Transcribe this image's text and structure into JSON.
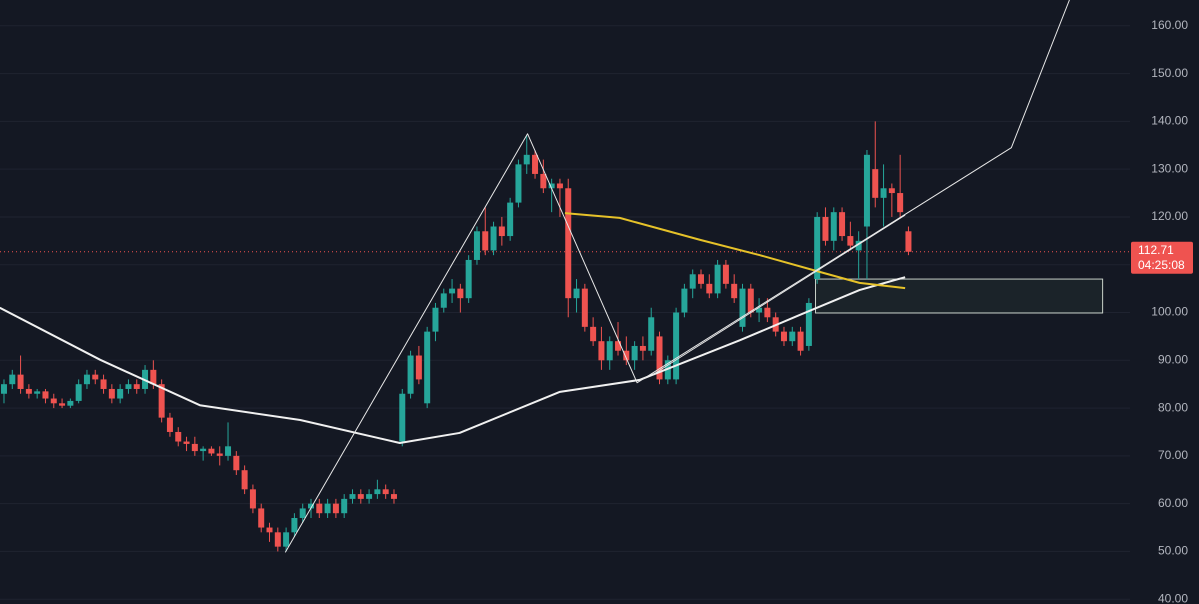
{
  "chart_data": {
    "type": "candlestick",
    "up_color": "#26a69a",
    "down_color": "#ef5350",
    "xlim": [
      -0.48,
      135.7
    ],
    "ylim": [
      39,
      165.4
    ],
    "yticks": [
      {
        "value": 40,
        "label": "40.00"
      },
      {
        "value": 50,
        "label": "50.00"
      },
      {
        "value": 60,
        "label": "60.00"
      },
      {
        "value": 70,
        "label": "70.00"
      },
      {
        "value": 80,
        "label": "80.00"
      },
      {
        "value": 90,
        "label": "90.00"
      },
      {
        "value": 100,
        "label": "100.00"
      },
      {
        "value": 110,
        "label": "110.00"
      },
      {
        "value": 120,
        "label": "120.00"
      },
      {
        "value": 130,
        "label": "130.00"
      },
      {
        "value": 140,
        "label": "140.00"
      },
      {
        "value": 150,
        "label": "150.00"
      },
      {
        "value": 160,
        "label": "160.00"
      }
    ],
    "grid": true,
    "open": [
      83,
      85,
      87,
      84,
      83,
      83.5,
      82,
      81,
      80.5,
      81.5,
      85,
      87,
      86,
      84,
      82,
      84,
      85,
      84,
      88,
      85,
      78,
      75,
      73,
      72.5,
      71,
      71.5,
      70.5,
      70,
      70,
      67,
      63,
      59,
      55,
      54,
      51,
      54,
      57,
      59,
      60,
      58,
      60,
      58,
      61,
      62,
      61,
      62,
      63,
      62,
      73,
      83,
      91,
      81,
      96,
      101,
      104,
      105,
      103,
      111,
      117,
      113,
      118,
      116,
      123,
      131,
      133,
      129,
      126,
      127,
      126,
      103,
      105,
      97,
      94,
      90,
      94,
      92,
      90,
      93,
      92,
      95,
      86,
      86,
      100,
      105,
      108,
      106,
      104,
      110,
      106,
      97,
      105,
      100,
      101,
      99,
      96,
      94,
      96,
      93,
      107,
      120,
      115,
      121,
      116,
      113,
      118,
      130,
      124,
      126,
      125,
      117
    ],
    "high": [
      86,
      88,
      91,
      85,
      84,
      84,
      83,
      82,
      82,
      86,
      88,
      88,
      87,
      85,
      85,
      86,
      86,
      89,
      90,
      86,
      79,
      76,
      74,
      74,
      72,
      72,
      72,
      77,
      71,
      68,
      64,
      60,
      56,
      55,
      55,
      58,
      60,
      61,
      61,
      61,
      61,
      62,
      63,
      63,
      63,
      65,
      64,
      63,
      84,
      92,
      93,
      97,
      102,
      105,
      107,
      106,
      112,
      118,
      122,
      119,
      120,
      124,
      132,
      137,
      134,
      132,
      128,
      128,
      128,
      107,
      106,
      99,
      97,
      95,
      98,
      95,
      94,
      95,
      101,
      96,
      91,
      101,
      106,
      109,
      109,
      108,
      111,
      111,
      108,
      106,
      106,
      103,
      103,
      100,
      97,
      97,
      97,
      103,
      121,
      122,
      122,
      122,
      119,
      117,
      134,
      140,
      131,
      127,
      133,
      118
    ],
    "low": [
      81,
      84,
      83,
      82,
      82,
      81,
      80,
      80,
      80,
      81,
      84,
      85,
      83,
      81,
      81,
      83,
      83,
      83,
      84,
      77,
      74,
      72,
      71,
      70,
      69,
      70,
      68,
      69,
      66,
      62,
      58,
      54,
      52,
      50,
      50,
      53,
      56,
      57,
      57,
      57,
      57,
      57,
      60,
      60,
      60,
      61,
      61,
      60,
      72,
      82,
      85,
      80,
      94,
      100,
      102,
      100,
      102,
      110,
      112,
      112,
      114,
      115,
      122,
      129,
      128,
      125,
      121,
      120,
      99,
      100,
      96,
      93,
      88,
      88,
      91,
      89,
      88,
      90,
      91,
      85,
      85,
      85,
      99,
      103,
      105,
      103,
      103,
      105,
      102,
      96,
      99,
      98,
      98,
      95,
      93,
      93,
      91,
      92,
      106,
      114,
      113,
      115,
      113,
      107,
      107,
      122,
      118,
      120,
      120,
      112
    ],
    "close": [
      85,
      87,
      84,
      83,
      83.5,
      82,
      81,
      80.5,
      81.5,
      85,
      87,
      86,
      84,
      82,
      84,
      85,
      84,
      88,
      85,
      78,
      75,
      73,
      72.5,
      71,
      71.5,
      70.5,
      70,
      72,
      67,
      63,
      59,
      55,
      54,
      51,
      54,
      57,
      59,
      60,
      58,
      60,
      58,
      61,
      62,
      61,
      62,
      63,
      62,
      61,
      83,
      91,
      86,
      96,
      101,
      104,
      105,
      103,
      111,
      117,
      113,
      118,
      116,
      123,
      131,
      133,
      129,
      126,
      127,
      126,
      103,
      105,
      97,
      94,
      90,
      94,
      92,
      90,
      93,
      92,
      99,
      86,
      90,
      100,
      105,
      108,
      106,
      104,
      110,
      106,
      103,
      105,
      100,
      101,
      99,
      96,
      94,
      96,
      92,
      102,
      120,
      115,
      121,
      116,
      114,
      115,
      133,
      124,
      126,
      125,
      121,
      112.71
    ],
    "overlays": [
      {
        "color": "#f0f0f0",
        "width": 2,
        "x": [
          -0.5,
          11.6,
          23.6,
          35.7,
          47.7,
          54.9,
          67,
          76.6,
          88.7,
          95.9,
          103.1,
          108.6
        ],
        "values": [
          101,
          90.1,
          80.6,
          77.5,
          72.7,
          74.8,
          83.4,
          85.9,
          94.2,
          99.5,
          104.7,
          107.4
        ]
      },
      {
        "color": "#e6c229",
        "width": 2,
        "x": [
          67.6,
          74.2,
          83.9,
          91.1,
          98.3,
          103.1,
          108.6
        ],
        "values": [
          120.8,
          119.8,
          115.2,
          112.0,
          108.5,
          106.2,
          105.1
        ]
      },
      {
        "color": "#e8e8e8",
        "width": 1,
        "x": [
          33.9,
          63.1,
          76.3,
          121.4,
          128.4
        ],
        "values": [
          49.8,
          137.4,
          85.3,
          134.5,
          165.4
        ]
      },
      {
        "color": "#e8e8e8",
        "width": 1,
        "x": [
          78.1,
          108.6
        ],
        "values": [
          86.9,
          120.4
        ]
      }
    ],
    "zone": {
      "x": [
        97.8,
        132.4
      ],
      "values": [
        107.0,
        99.9
      ]
    },
    "last_price": {
      "value": 112.71,
      "label": "112.71"
    },
    "countdown": "04:25:08"
  }
}
